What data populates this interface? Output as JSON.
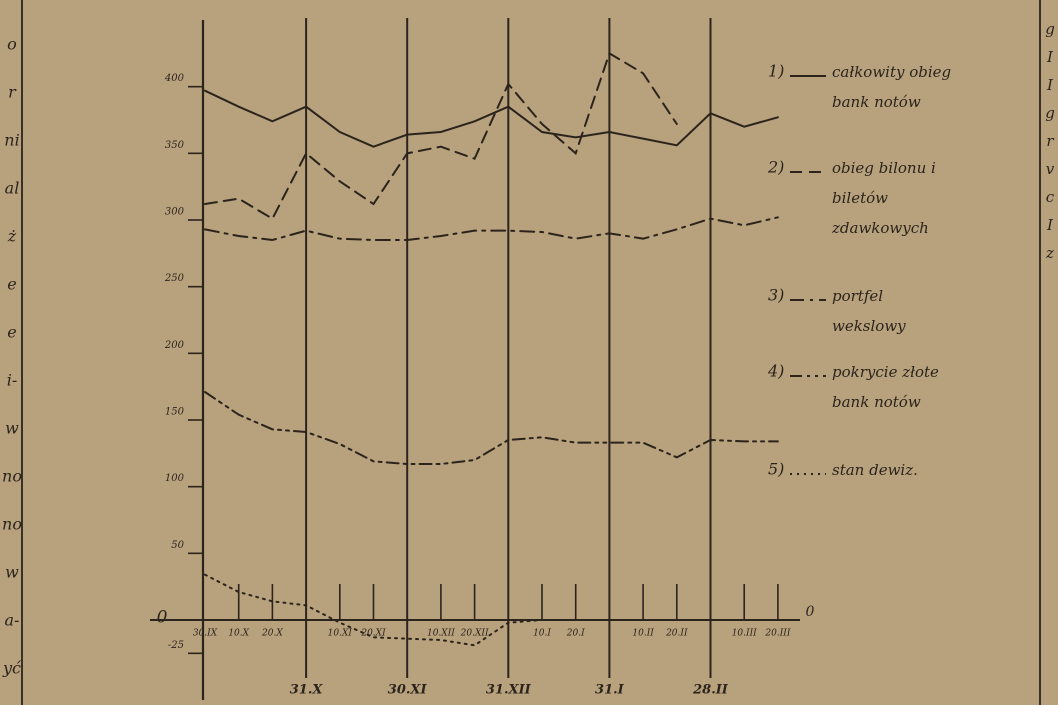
{
  "chart_data": {
    "type": "line",
    "categories": [
      "30.IX",
      "10.X",
      "20.X",
      "31.X",
      "10.XI",
      "20.XI",
      "30.XI",
      "10.XII",
      "20.XII",
      "31.XII",
      "10.I",
      "20.I",
      "31.I",
      "10.II",
      "20.II",
      "28.II",
      "10.III",
      "20.III"
    ],
    "series": [
      {
        "number": "1)",
        "name": "całkowity obieg bank notów",
        "color": "#2b241c",
        "style": "solid",
        "values": [
          397,
          385,
          374,
          385,
          366,
          355,
          364,
          366,
          374,
          385,
          366,
          362,
          366,
          361,
          356,
          380,
          370,
          377
        ]
      },
      {
        "number": "2)",
        "name": "obieg bilonu i biletów zdawkowych",
        "color": "#2b241c",
        "style": "dashed",
        "values": [
          312,
          316,
          301,
          350,
          329,
          312,
          350,
          355,
          346,
          402,
          372,
          350,
          425,
          410,
          372,
          null,
          null,
          null
        ]
      },
      {
        "number": "3)",
        "name": "portfel wekslowy",
        "color": "#2b241c",
        "style": "dashdot",
        "values": [
          293,
          288,
          285,
          292,
          286,
          285,
          285,
          288,
          292,
          292,
          291,
          286,
          290,
          286,
          293,
          301,
          296,
          302
        ]
      },
      {
        "number": "4)",
        "name": "pokrycie złote bank notów",
        "color": "#2b241c",
        "style": "dashdotdot",
        "values": [
          171,
          154,
          143,
          141,
          132,
          119,
          117,
          117,
          120,
          135,
          137,
          133,
          133,
          133,
          122,
          135,
          134,
          134
        ]
      },
      {
        "number": "5)",
        "name": "stan dewiz.",
        "color": "#2b241c",
        "style": "dotted",
        "values": [
          34,
          21,
          14,
          11,
          -2,
          -13,
          -14,
          -15,
          -19,
          -2,
          0,
          0,
          0,
          0,
          0,
          0,
          0,
          0
        ]
      }
    ],
    "ylim": [
      -60,
      450
    ],
    "yticks": [
      -25,
      0,
      50,
      100,
      150,
      200,
      250,
      300,
      350,
      400
    ]
  },
  "page_margin": {
    "left": [
      "o",
      "r",
      "ni",
      "al",
      "ż",
      "e",
      "e",
      "i-",
      "w",
      "no",
      "no",
      "w",
      "a-",
      "yć"
    ],
    "right": [
      "g",
      "I",
      "I",
      "g",
      "r",
      "v",
      "c",
      "I",
      "z"
    ]
  }
}
